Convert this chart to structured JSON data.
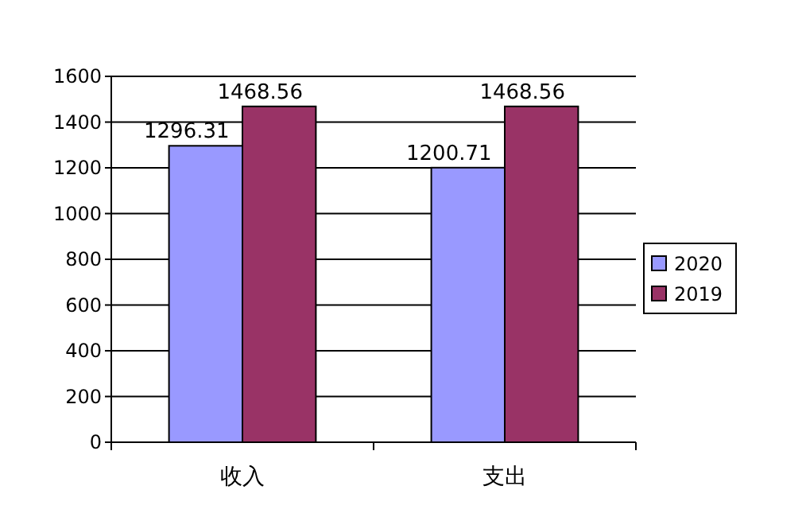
{
  "chart_data": {
    "type": "bar",
    "categories": [
      "收入",
      "支出"
    ],
    "series": [
      {
        "name": "2020",
        "color": "#9999ff",
        "values": [
          1296.31,
          1200.71
        ]
      },
      {
        "name": "2019",
        "color": "#993366",
        "values": [
          1468.56,
          1468.56
        ]
      }
    ],
    "ylim": [
      0,
      1600
    ],
    "yticks": [
      0,
      200,
      400,
      600,
      800,
      1000,
      1200,
      1400,
      1600
    ],
    "grid": "y",
    "legend": "right",
    "data_labels": true
  }
}
